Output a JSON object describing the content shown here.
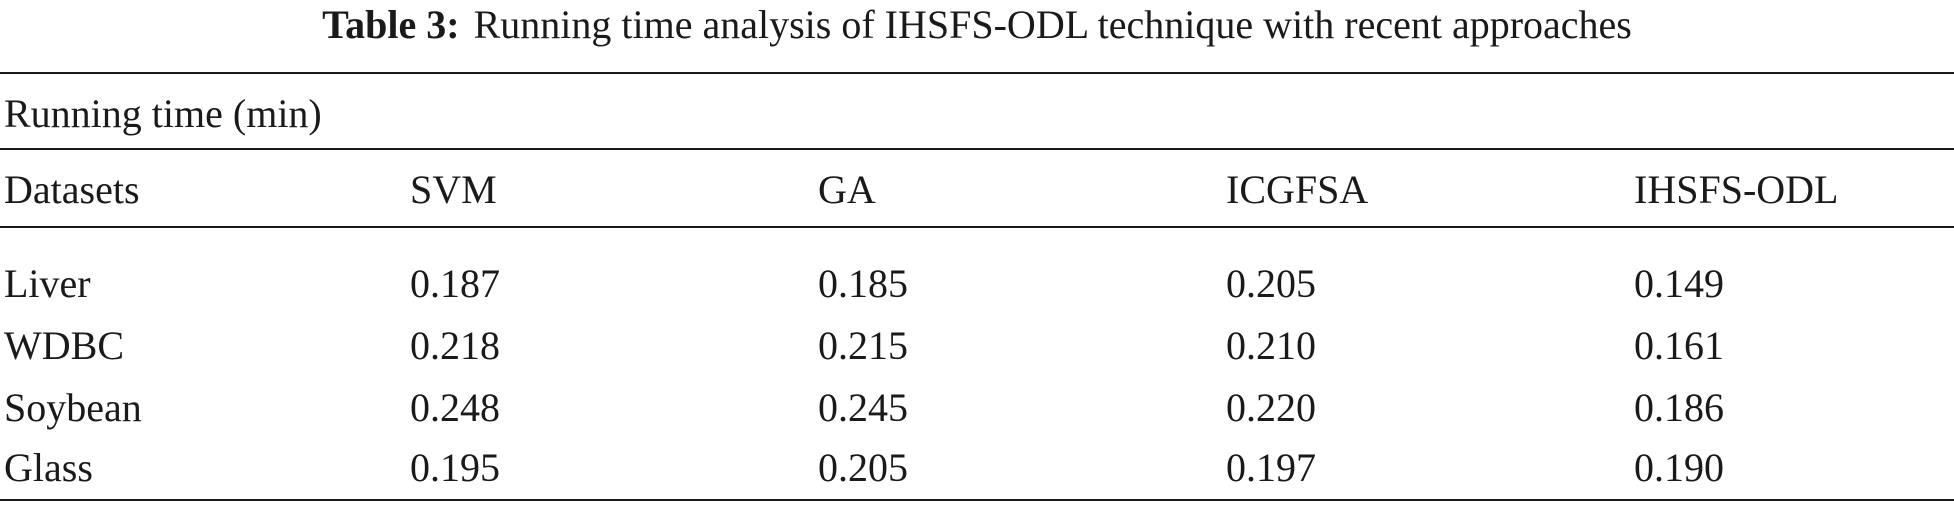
{
  "caption": {
    "label": "Table 3:",
    "text": "Running time analysis of IHSFS-ODL technique with recent approaches"
  },
  "group_label": "Running time (min)",
  "headers": [
    "Datasets",
    "SVM",
    "GA",
    "ICGFSA",
    "IHSFS-ODL"
  ],
  "rows": [
    [
      "Liver",
      "0.187",
      "0.185",
      "0.205",
      "0.149"
    ],
    [
      "WDBC",
      "0.218",
      "0.215",
      "0.210",
      "0.161"
    ],
    [
      "Soybean",
      "0.248",
      "0.245",
      "0.220",
      "0.186"
    ],
    [
      "Glass",
      "0.195",
      "0.205",
      "0.197",
      "0.190"
    ]
  ]
}
